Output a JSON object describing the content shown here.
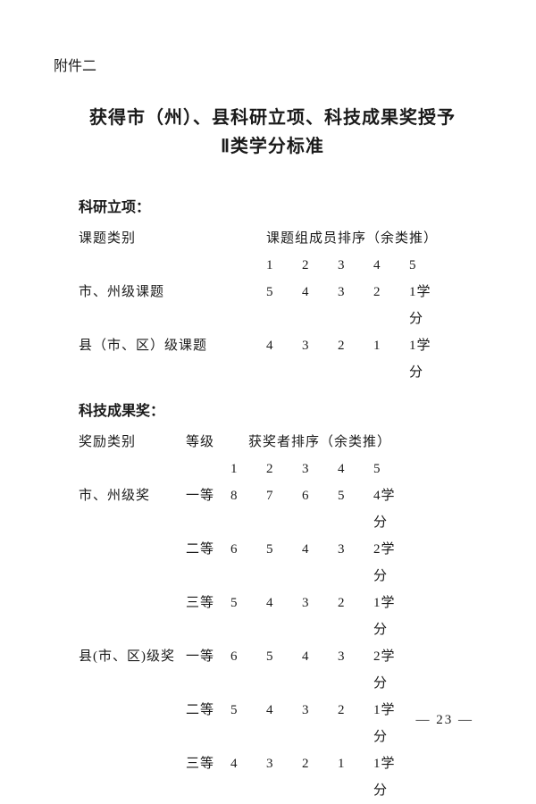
{
  "appendix": "附件二",
  "title_line1": "获得市（州）、县科研立项、科技成果奖授予",
  "title_line2": "Ⅱ类学分标准",
  "section1": {
    "heading": "科研立项：",
    "cat_header": "课题类别",
    "rank_header": "课题组成员排序（余类推）",
    "ranks": [
      "1",
      "2",
      "3",
      "4",
      "5"
    ],
    "rows": [
      {
        "cat": "市、州级课题",
        "vals": [
          "5",
          "4",
          "3",
          "2",
          "1"
        ],
        "unit": "学分"
      },
      {
        "cat": "县（市、区）级课题",
        "vals": [
          "4",
          "3",
          "2",
          "1",
          "1"
        ],
        "unit": "学分"
      }
    ]
  },
  "section2": {
    "heading": "科技成果奖：",
    "cat_header": "奖励类别",
    "grade_header": "等级",
    "rank_header": "获奖者排序（余类推）",
    "ranks": [
      "1",
      "2",
      "3",
      "4",
      "5"
    ],
    "rows": [
      {
        "cat": "市、州级奖",
        "grade": "一等",
        "vals": [
          "8",
          "7",
          "6",
          "5",
          "4"
        ],
        "unit": "学分"
      },
      {
        "cat": "",
        "grade": "二等",
        "vals": [
          "6",
          "5",
          "4",
          "3",
          "2"
        ],
        "unit": "学分"
      },
      {
        "cat": "",
        "grade": "三等",
        "vals": [
          "5",
          "4",
          "3",
          "2",
          "1"
        ],
        "unit": "学分"
      },
      {
        "cat": "县(市、区)级奖",
        "grade": "一等",
        "vals": [
          "6",
          "5",
          "4",
          "3",
          "2"
        ],
        "unit": "学分"
      },
      {
        "cat": "",
        "grade": "二等",
        "vals": [
          "5",
          "4",
          "3",
          "2",
          "1"
        ],
        "unit": "学分"
      },
      {
        "cat": "",
        "grade": "三等",
        "vals": [
          "4",
          "3",
          "2",
          "1",
          "1"
        ],
        "unit": "学分"
      }
    ]
  },
  "page_number": "— 23 —"
}
